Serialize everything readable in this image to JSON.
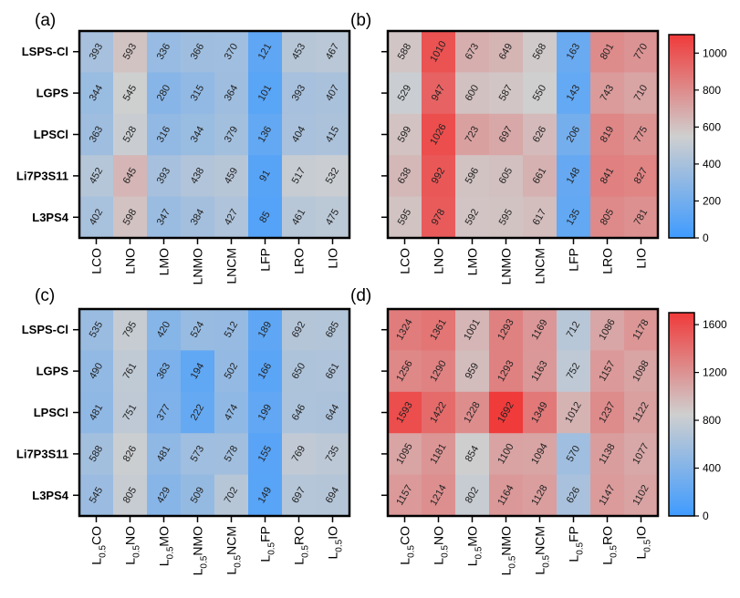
{
  "chart_data": [
    {
      "type": "heatmap",
      "panel": "(a)",
      "rows": [
        "LSPS-Cl",
        "LGPS",
        "LPSCl",
        "Li7P3S11",
        "L3PS4"
      ],
      "columns": [
        "LCO",
        "LNO",
        "LMO",
        "LNMO",
        "LNCM",
        "LFP",
        "LRO",
        "LIO"
      ],
      "values": [
        [
          393,
          593,
          336,
          366,
          370,
          121,
          453,
          467
        ],
        [
          344,
          545,
          280,
          315,
          364,
          101,
          393,
          407
        ],
        [
          363,
          528,
          316,
          344,
          379,
          136,
          404,
          415
        ],
        [
          452,
          645,
          393,
          438,
          459,
          91,
          517,
          532
        ],
        [
          402,
          598,
          347,
          384,
          427,
          85,
          461,
          475
        ]
      ],
      "colorscale": {
        "min": 0,
        "max": 1100,
        "low": "#3f9bff",
        "mid": "#cfcfcf",
        "high": "#f03a3a"
      }
    },
    {
      "type": "heatmap",
      "panel": "(b)",
      "rows": [
        "LSPS-Cl",
        "LGPS",
        "LPSCl",
        "Li7P3S11",
        "L3PS4"
      ],
      "columns": [
        "LCO",
        "LNO",
        "LMO",
        "LNMO",
        "LNCM",
        "LFP",
        "LRO",
        "LIO"
      ],
      "values": [
        [
          588,
          1010,
          673,
          649,
          568,
          163,
          801,
          770
        ],
        [
          529,
          947,
          600,
          587,
          550,
          143,
          743,
          710
        ],
        [
          599,
          1026,
          723,
          697,
          626,
          206,
          819,
          775
        ],
        [
          638,
          992,
          596,
          605,
          661,
          148,
          841,
          827
        ],
        [
          595,
          978,
          592,
          595,
          617,
          135,
          805,
          781
        ]
      ],
      "colorscale": {
        "min": 0,
        "max": 1100,
        "low": "#3f9bff",
        "mid": "#cfcfcf",
        "high": "#f03a3a"
      },
      "colorbar": {
        "ticks": [
          "0",
          "200",
          "400",
          "600",
          "800",
          "1000"
        ],
        "tick_values": [
          0,
          200,
          400,
          600,
          800,
          1000
        ]
      }
    },
    {
      "type": "heatmap",
      "panel": "(c)",
      "rows": [
        "LSPS-Cl",
        "LGPS",
        "LPSCl",
        "Li7P3S11",
        "L3PS4"
      ],
      "column_suffixes": [
        "CO",
        "NO",
        "MO",
        "NMO",
        "NCM",
        "FP",
        "RO",
        "IO"
      ],
      "column_prefix": "L",
      "column_subscript": "0.5",
      "values": [
        [
          535,
          795,
          420,
          524,
          512,
          189,
          692,
          685
        ],
        [
          490,
          761,
          363,
          194,
          502,
          166,
          650,
          661
        ],
        [
          481,
          751,
          377,
          222,
          474,
          199,
          646,
          644
        ],
        [
          588,
          826,
          481,
          573,
          578,
          155,
          769,
          735
        ],
        [
          545,
          805,
          429,
          509,
          702,
          149,
          697,
          694
        ]
      ],
      "colorscale": {
        "min": 0,
        "max": 1700,
        "low": "#3f9bff",
        "mid": "#cfcfcf",
        "high": "#f03a3a"
      }
    },
    {
      "type": "heatmap",
      "panel": "(d)",
      "rows": [
        "LSPS-Cl",
        "LGPS",
        "LPSCl",
        "Li7P3S11",
        "L3PS4"
      ],
      "column_suffixes": [
        "CO",
        "NO",
        "MO",
        "NMO",
        "NCM",
        "FP",
        "RO",
        "IO"
      ],
      "column_prefix": "L",
      "column_subscript": "0.5",
      "values": [
        [
          1324,
          1361,
          1001,
          1293,
          1169,
          712,
          1086,
          1178
        ],
        [
          1256,
          1290,
          959,
          1293,
          1163,
          752,
          1157,
          1098
        ],
        [
          1593,
          1422,
          1228,
          1692,
          1349,
          1012,
          1237,
          1122
        ],
        [
          1095,
          1181,
          854,
          1100,
          1094,
          570,
          1138,
          1077
        ],
        [
          1157,
          1214,
          802,
          1164,
          1128,
          626,
          1147,
          1102
        ]
      ],
      "colorscale": {
        "min": 0,
        "max": 1700,
        "low": "#3f9bff",
        "mid": "#cfcfcf",
        "high": "#f03a3a"
      },
      "colorbar": {
        "ticks": [
          "0",
          "400",
          "800",
          "1200",
          "1600"
        ],
        "tick_values": [
          0,
          400,
          800,
          1200,
          1600
        ]
      }
    }
  ]
}
